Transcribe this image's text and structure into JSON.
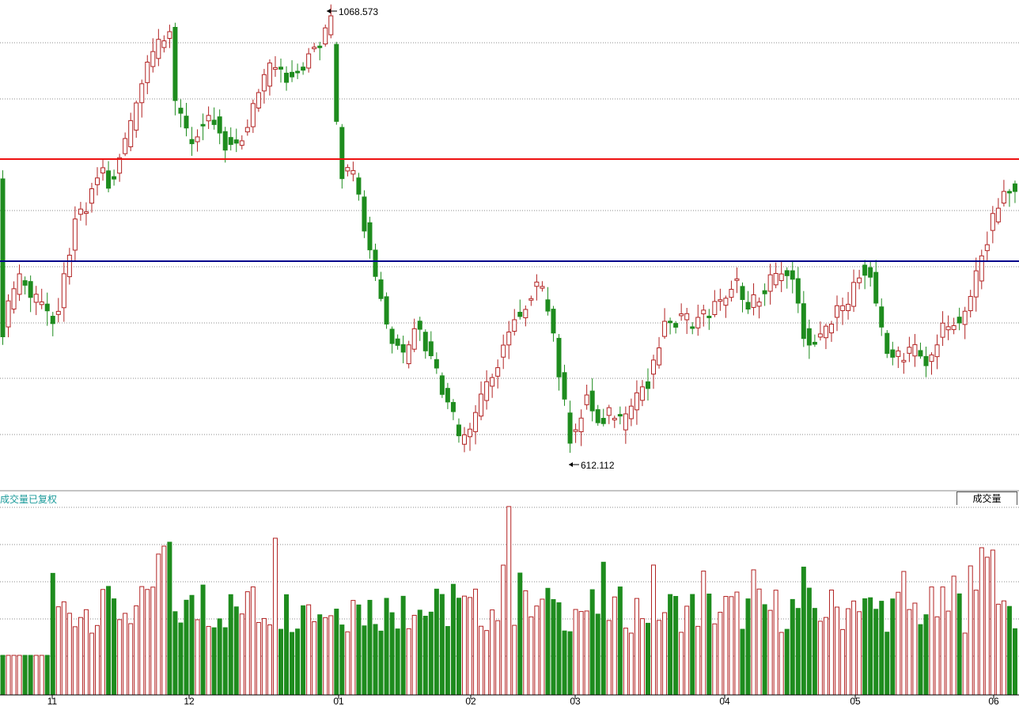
{
  "volume_panel": {
    "title": "成交量已复权",
    "tab_label": "成交量"
  },
  "colors": {
    "up": "#b22222",
    "down": "#1e8c1e",
    "resistance": "#ee1111",
    "support": "#00008b",
    "grid": "#8c8c8c",
    "volume_title": "#1a9a9a"
  },
  "chart_data": {
    "type": "candlestick",
    "price_annotations": {
      "high": "1068.573",
      "low": "612.112"
    },
    "price_scale": {
      "reference_line_red": 850,
      "reference_line_blue": 755
    },
    "x_tick_labels": [
      "11",
      "12",
      "01",
      "02",
      "03",
      "04",
      "05",
      "06"
    ],
    "grid": true
  }
}
